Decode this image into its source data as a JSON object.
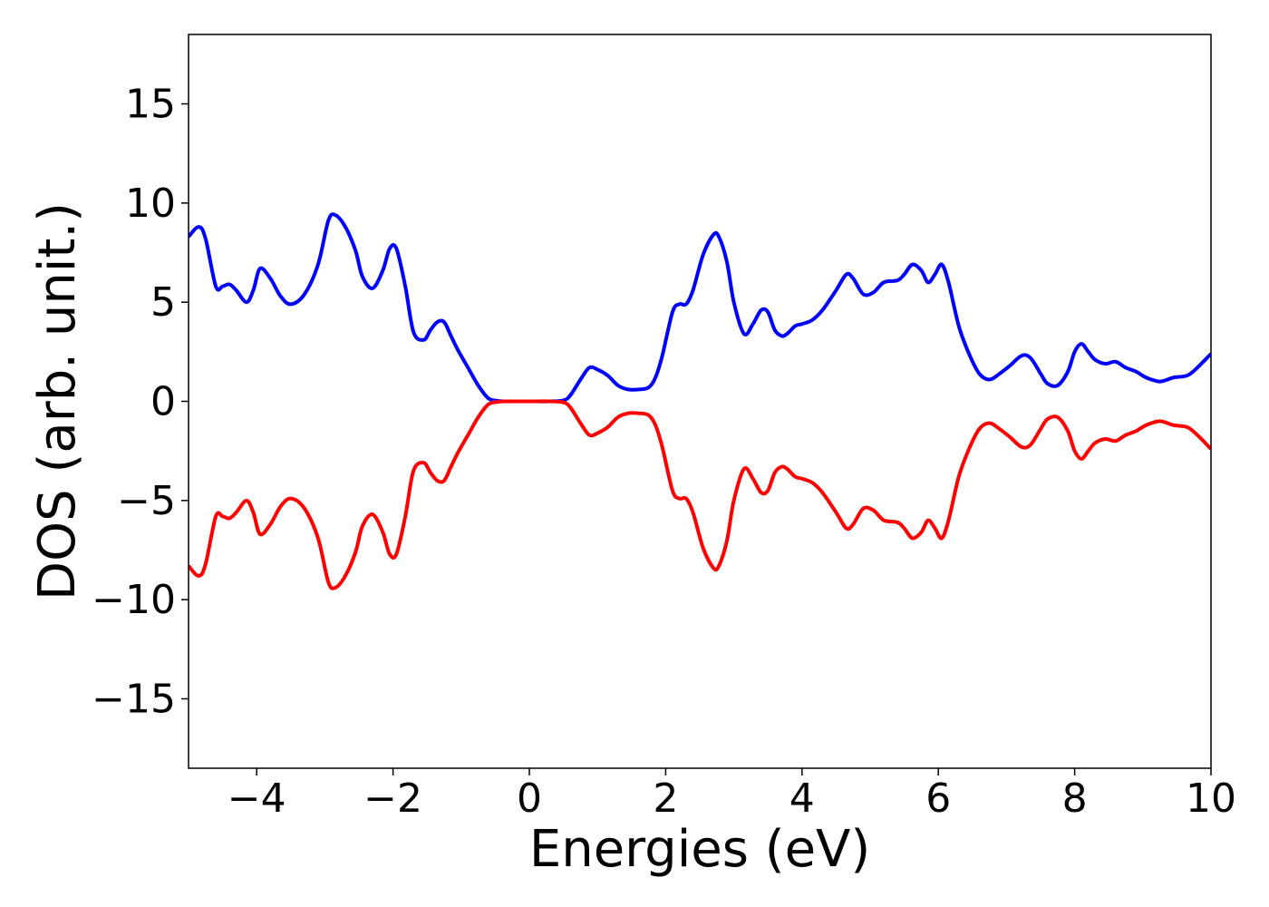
{
  "chart_data": {
    "type": "line",
    "title": "",
    "xlabel": "Energies (eV)",
    "ylabel": "DOS (arb. unit.)",
    "xlim": [
      -5,
      10
    ],
    "ylim": [
      -18.5,
      18.5
    ],
    "grid": false,
    "x_ticks": [
      {
        "value": -4,
        "label": "−4"
      },
      {
        "value": -2,
        "label": "−2"
      },
      {
        "value": 0,
        "label": "0"
      },
      {
        "value": 2,
        "label": "2"
      },
      {
        "value": 4,
        "label": "4"
      },
      {
        "value": 6,
        "label": "6"
      },
      {
        "value": 8,
        "label": "8"
      },
      {
        "value": 10,
        "label": "10"
      }
    ],
    "y_ticks": [
      {
        "value": 15,
        "label": "15"
      },
      {
        "value": 10,
        "label": "10"
      },
      {
        "value": 5,
        "label": "5"
      },
      {
        "value": 0,
        "label": "0"
      },
      {
        "value": -5,
        "label": "−5"
      },
      {
        "value": -10,
        "label": "−10"
      },
      {
        "value": -15,
        "label": "−15"
      }
    ],
    "series": [
      {
        "color": "#0000ff",
        "x": [
          -5.0,
          -4.85,
          -4.75,
          -4.6,
          -4.5,
          -4.4,
          -4.3,
          -4.15,
          -4.05,
          -3.95,
          -3.8,
          -3.65,
          -3.5,
          -3.3,
          -3.1,
          -2.95,
          -2.85,
          -2.7,
          -2.55,
          -2.45,
          -2.3,
          -2.15,
          -2.05,
          -1.95,
          -1.82,
          -1.7,
          -1.55,
          -1.45,
          -1.35,
          -1.25,
          -1.15,
          -1.05,
          -0.9,
          -0.75,
          -0.6,
          -0.45,
          -0.3,
          0.0,
          0.3,
          0.5,
          0.6,
          0.75,
          0.88,
          1.0,
          1.15,
          1.3,
          1.45,
          1.6,
          1.75,
          1.85,
          1.95,
          2.1,
          2.2,
          2.3,
          2.4,
          2.55,
          2.7,
          2.78,
          2.9,
          3.0,
          3.15,
          3.28,
          3.4,
          3.5,
          3.6,
          3.7,
          3.78,
          3.9,
          4.0,
          4.15,
          4.3,
          4.5,
          4.65,
          4.75,
          4.9,
          5.05,
          5.2,
          5.4,
          5.5,
          5.62,
          5.75,
          5.85,
          5.95,
          6.05,
          6.15,
          6.3,
          6.45,
          6.6,
          6.75,
          6.9,
          7.05,
          7.22,
          7.35,
          7.5,
          7.6,
          7.75,
          7.9,
          8.0,
          8.1,
          8.2,
          8.3,
          8.45,
          8.6,
          8.75,
          8.9,
          9.05,
          9.25,
          9.45,
          9.65,
          9.8,
          10.0
        ],
        "y": [
          8.3,
          8.8,
          8.2,
          5.8,
          5.8,
          5.9,
          5.6,
          5.0,
          5.6,
          6.7,
          6.2,
          5.3,
          4.9,
          5.4,
          6.9,
          9.1,
          9.4,
          8.8,
          7.6,
          6.3,
          5.7,
          6.6,
          7.7,
          7.7,
          5.8,
          3.5,
          3.1,
          3.6,
          4.0,
          4.0,
          3.3,
          2.6,
          1.7,
          0.8,
          0.15,
          0.02,
          0.0,
          0.0,
          0.0,
          0.05,
          0.3,
          1.1,
          1.7,
          1.6,
          1.3,
          0.8,
          0.6,
          0.6,
          0.7,
          1.2,
          2.3,
          4.5,
          4.9,
          4.9,
          5.6,
          7.4,
          8.4,
          8.3,
          7.0,
          5.0,
          3.4,
          3.9,
          4.6,
          4.5,
          3.6,
          3.3,
          3.4,
          3.8,
          3.9,
          4.1,
          4.6,
          5.6,
          6.4,
          6.2,
          5.4,
          5.5,
          6.0,
          6.1,
          6.4,
          6.9,
          6.6,
          6.0,
          6.4,
          6.9,
          6.0,
          3.8,
          2.4,
          1.4,
          1.1,
          1.4,
          1.8,
          2.3,
          2.2,
          1.4,
          0.9,
          0.8,
          1.5,
          2.5,
          2.9,
          2.5,
          2.1,
          1.9,
          2.0,
          1.7,
          1.5,
          1.2,
          1.0,
          1.2,
          1.3,
          1.7,
          2.4
        ]
      },
      {
        "color": "#ff0000",
        "x": [
          -5.0,
          -4.85,
          -4.75,
          -4.6,
          -4.5,
          -4.4,
          -4.3,
          -4.15,
          -4.05,
          -3.95,
          -3.8,
          -3.65,
          -3.5,
          -3.3,
          -3.1,
          -2.95,
          -2.85,
          -2.7,
          -2.55,
          -2.45,
          -2.3,
          -2.15,
          -2.05,
          -1.95,
          -1.82,
          -1.7,
          -1.55,
          -1.45,
          -1.35,
          -1.25,
          -1.15,
          -1.05,
          -0.9,
          -0.75,
          -0.6,
          -0.45,
          -0.3,
          0.0,
          0.3,
          0.5,
          0.6,
          0.75,
          0.88,
          1.0,
          1.15,
          1.3,
          1.45,
          1.6,
          1.75,
          1.85,
          1.95,
          2.1,
          2.2,
          2.3,
          2.4,
          2.55,
          2.7,
          2.78,
          2.9,
          3.0,
          3.15,
          3.28,
          3.4,
          3.5,
          3.6,
          3.7,
          3.78,
          3.9,
          4.0,
          4.15,
          4.3,
          4.5,
          4.65,
          4.75,
          4.9,
          5.05,
          5.2,
          5.4,
          5.5,
          5.62,
          5.75,
          5.85,
          5.95,
          6.05,
          6.15,
          6.3,
          6.45,
          6.6,
          6.75,
          6.9,
          7.05,
          7.22,
          7.35,
          7.5,
          7.6,
          7.75,
          7.9,
          8.0,
          8.1,
          8.2,
          8.3,
          8.45,
          8.6,
          8.75,
          8.9,
          9.05,
          9.25,
          9.45,
          9.65,
          9.8,
          10.0
        ],
        "y": [
          -8.3,
          -8.8,
          -8.2,
          -5.8,
          -5.8,
          -5.9,
          -5.6,
          -5.0,
          -5.6,
          -6.7,
          -6.2,
          -5.3,
          -4.9,
          -5.4,
          -6.9,
          -9.1,
          -9.4,
          -8.8,
          -7.6,
          -6.3,
          -5.7,
          -6.6,
          -7.7,
          -7.7,
          -5.8,
          -3.5,
          -3.1,
          -3.6,
          -4.0,
          -4.0,
          -3.3,
          -2.6,
          -1.7,
          -0.8,
          -0.15,
          -0.02,
          0.0,
          0.0,
          0.0,
          -0.05,
          -0.3,
          -1.1,
          -1.7,
          -1.6,
          -1.3,
          -0.8,
          -0.6,
          -0.6,
          -0.7,
          -1.2,
          -2.3,
          -4.5,
          -4.9,
          -4.9,
          -5.6,
          -7.4,
          -8.4,
          -8.3,
          -7.0,
          -5.0,
          -3.4,
          -3.9,
          -4.6,
          -4.5,
          -3.6,
          -3.3,
          -3.4,
          -3.8,
          -3.9,
          -4.1,
          -4.6,
          -5.6,
          -6.4,
          -6.2,
          -5.4,
          -5.5,
          -6.0,
          -6.1,
          -6.4,
          -6.9,
          -6.6,
          -6.0,
          -6.4,
          -6.9,
          -6.0,
          -3.8,
          -2.4,
          -1.4,
          -1.1,
          -1.4,
          -1.8,
          -2.3,
          -2.2,
          -1.4,
          -0.9,
          -0.8,
          -1.5,
          -2.5,
          -2.9,
          -2.5,
          -2.1,
          -1.9,
          -2.0,
          -1.7,
          -1.5,
          -1.2,
          -1.0,
          -1.2,
          -1.3,
          -1.7,
          -2.4
        ]
      }
    ]
  }
}
